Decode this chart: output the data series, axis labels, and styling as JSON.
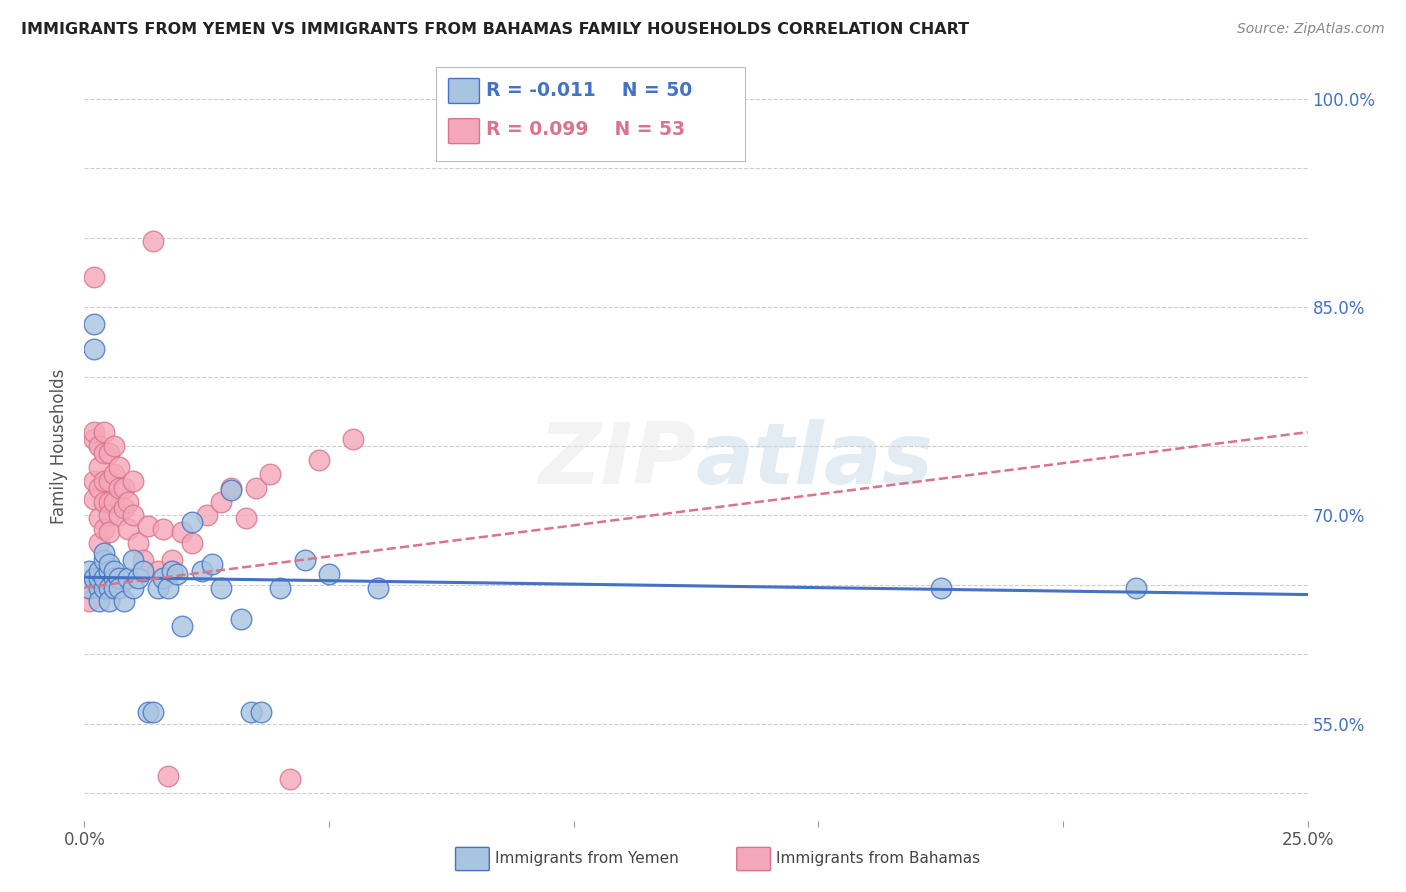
{
  "title": "IMMIGRANTS FROM YEMEN VS IMMIGRANTS FROM BAHAMAS FAMILY HOUSEHOLDS CORRELATION CHART",
  "source": "Source: ZipAtlas.com",
  "ylabel": "Family Households",
  "xlim": [
    0.0,
    0.25
  ],
  "ylim": [
    0.48,
    1.02
  ],
  "legend_r_yemen": "R = -0.011",
  "legend_n_yemen": "N = 50",
  "legend_r_bahamas": "R = 0.099",
  "legend_n_bahamas": "N = 53",
  "yemen_color": "#a8c4e0",
  "bahamas_color": "#f4a7b9",
  "yemen_line_color": "#4472c4",
  "bahamas_line_color": "#d9748a",
  "background_color": "#ffffff",
  "watermark": "ZIPatlas",
  "yemen_x": [
    0.001,
    0.001,
    0.002,
    0.002,
    0.002,
    0.003,
    0.003,
    0.003,
    0.003,
    0.004,
    0.004,
    0.004,
    0.004,
    0.005,
    0.005,
    0.005,
    0.005,
    0.006,
    0.006,
    0.006,
    0.007,
    0.007,
    0.008,
    0.009,
    0.01,
    0.01,
    0.011,
    0.012,
    0.013,
    0.014,
    0.015,
    0.016,
    0.017,
    0.018,
    0.019,
    0.02,
    0.022,
    0.024,
    0.026,
    0.028,
    0.03,
    0.032,
    0.034,
    0.036,
    0.04,
    0.045,
    0.05,
    0.06,
    0.175,
    0.215
  ],
  "yemen_y": [
    0.648,
    0.66,
    0.82,
    0.838,
    0.655,
    0.648,
    0.638,
    0.655,
    0.66,
    0.668,
    0.673,
    0.648,
    0.655,
    0.66,
    0.648,
    0.638,
    0.665,
    0.655,
    0.648,
    0.66,
    0.655,
    0.648,
    0.638,
    0.655,
    0.648,
    0.668,
    0.655,
    0.66,
    0.558,
    0.558,
    0.648,
    0.655,
    0.648,
    0.66,
    0.658,
    0.62,
    0.695,
    0.66,
    0.665,
    0.648,
    0.718,
    0.625,
    0.558,
    0.558,
    0.648,
    0.668,
    0.658,
    0.648,
    0.648,
    0.648
  ],
  "bahamas_x": [
    0.001,
    0.001,
    0.002,
    0.002,
    0.002,
    0.002,
    0.002,
    0.003,
    0.003,
    0.003,
    0.003,
    0.003,
    0.004,
    0.004,
    0.004,
    0.004,
    0.004,
    0.005,
    0.005,
    0.005,
    0.005,
    0.005,
    0.006,
    0.006,
    0.006,
    0.007,
    0.007,
    0.007,
    0.008,
    0.008,
    0.009,
    0.009,
    0.01,
    0.01,
    0.011,
    0.012,
    0.013,
    0.014,
    0.015,
    0.016,
    0.017,
    0.018,
    0.02,
    0.022,
    0.025,
    0.028,
    0.03,
    0.033,
    0.035,
    0.038,
    0.042,
    0.048,
    0.055
  ],
  "bahamas_y": [
    0.648,
    0.638,
    0.872,
    0.755,
    0.725,
    0.712,
    0.76,
    0.75,
    0.735,
    0.72,
    0.698,
    0.68,
    0.76,
    0.745,
    0.725,
    0.71,
    0.69,
    0.745,
    0.725,
    0.71,
    0.7,
    0.688,
    0.75,
    0.73,
    0.71,
    0.735,
    0.72,
    0.7,
    0.72,
    0.705,
    0.71,
    0.69,
    0.725,
    0.7,
    0.68,
    0.668,
    0.692,
    0.898,
    0.66,
    0.69,
    0.512,
    0.668,
    0.688,
    0.68,
    0.7,
    0.71,
    0.72,
    0.698,
    0.72,
    0.73,
    0.51,
    0.74,
    0.755
  ],
  "y_tick_vals": [
    0.5,
    0.55,
    0.6,
    0.65,
    0.7,
    0.75,
    0.8,
    0.85,
    0.9,
    0.95,
    1.0
  ],
  "y_tick_labels_right": [
    "",
    "55.0%",
    "",
    "",
    "70.0%",
    "",
    "",
    "85.0%",
    "",
    "",
    "100.0%"
  ]
}
